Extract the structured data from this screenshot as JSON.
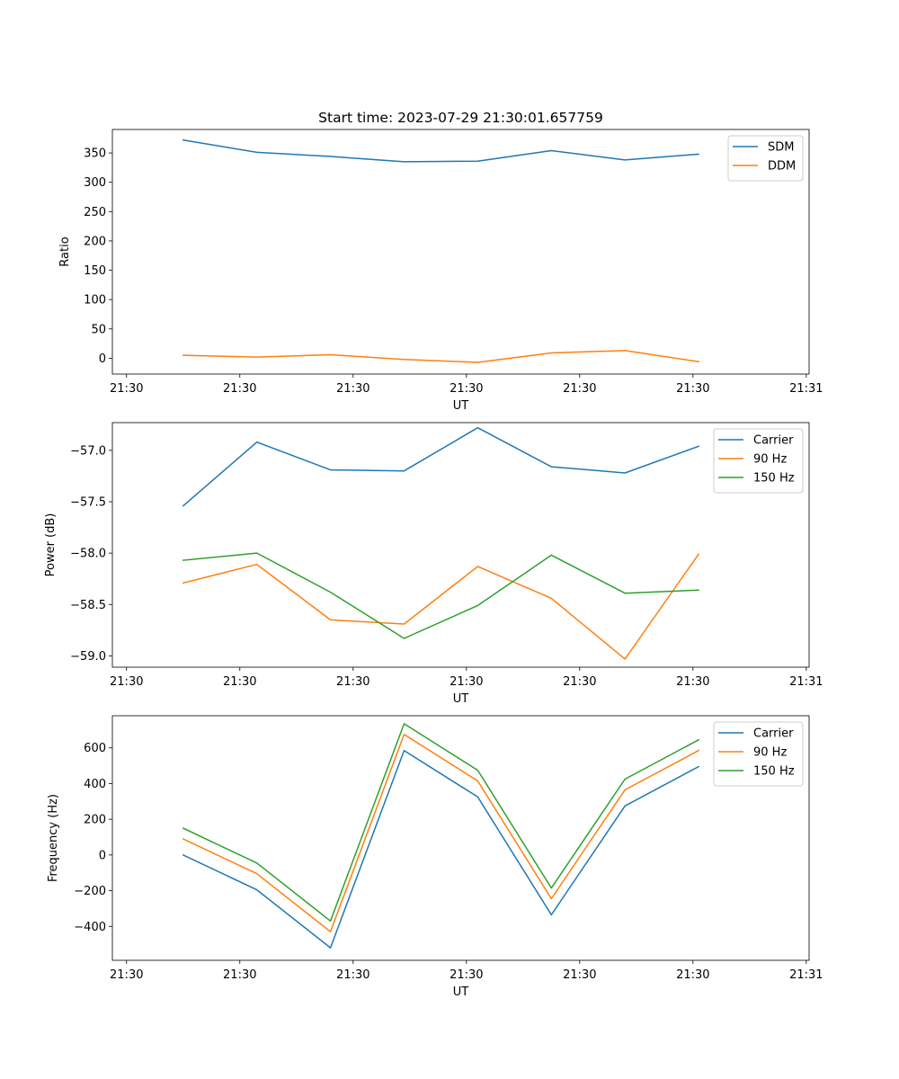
{
  "chart_data": [
    {
      "type": "line",
      "title": "Start time: 2023-07-29 21:30:01.657759",
      "xlabel": "UT",
      "ylabel": "Ratio",
      "x_ticks": [
        "21:30",
        "21:30",
        "21:30",
        "21:30",
        "21:30",
        "21:30",
        "21:31"
      ],
      "xlim": [
        -0.125,
        6.025
      ],
      "ylim": [
        -27,
        390
      ],
      "y_ticks": [
        0,
        50,
        100,
        150,
        200,
        250,
        300,
        350
      ],
      "y_tick_labels": [
        "0",
        "50",
        "100",
        "150",
        "200",
        "250",
        "300",
        "350"
      ],
      "x": [
        0.5,
        1.15,
        1.8,
        2.45,
        3.1,
        3.75,
        4.4,
        5.05
      ],
      "legend": "top-right",
      "series": [
        {
          "name": "SDM",
          "color": "#1f77b4",
          "values": [
            372,
            351,
            344,
            335,
            336,
            354,
            338,
            348
          ]
        },
        {
          "name": "DDM",
          "color": "#ff7f0e",
          "values": [
            5,
            2,
            6,
            -2,
            -7,
            9,
            13,
            -6
          ]
        }
      ]
    },
    {
      "type": "line",
      "title": "",
      "xlabel": "UT",
      "ylabel": "Power (dB)",
      "x_ticks": [
        "21:30",
        "21:30",
        "21:30",
        "21:30",
        "21:30",
        "21:30",
        "21:31"
      ],
      "xlim": [
        -0.125,
        6.025
      ],
      "ylim": [
        -59.11,
        -56.73
      ],
      "y_ticks": [
        -59.0,
        -58.5,
        -58.0,
        -57.5,
        -57.0
      ],
      "y_tick_labels": [
        "−59.0",
        "−58.5",
        "−58.0",
        "−57.5",
        "−57.0"
      ],
      "x": [
        0.5,
        1.15,
        1.8,
        2.45,
        3.1,
        3.75,
        4.4,
        5.05
      ],
      "legend": "top-right",
      "series": [
        {
          "name": "Carrier",
          "color": "#1f77b4",
          "values": [
            -57.54,
            -56.92,
            -57.19,
            -57.2,
            -56.78,
            -57.16,
            -57.22,
            -56.96
          ]
        },
        {
          "name": "90 Hz",
          "color": "#ff7f0e",
          "values": [
            -58.29,
            -58.11,
            -58.65,
            -58.69,
            -58.13,
            -58.44,
            -59.03,
            -58.01
          ]
        },
        {
          "name": "150 Hz",
          "color": "#2ca02c",
          "values": [
            -58.07,
            -58.0,
            -58.38,
            -58.83,
            -58.51,
            -58.02,
            -58.39,
            -58.36
          ]
        }
      ]
    },
    {
      "type": "line",
      "title": "",
      "xlabel": "UT",
      "ylabel": "Frequency (Hz)",
      "x_ticks": [
        "21:30",
        "21:30",
        "21:30",
        "21:30",
        "21:30",
        "21:30",
        "21:31"
      ],
      "xlim": [
        -0.125,
        6.025
      ],
      "ylim": [
        -590,
        780
      ],
      "y_ticks": [
        -400,
        -200,
        0,
        200,
        400,
        600
      ],
      "y_tick_labels": [
        "−400",
        "−200",
        "0",
        "200",
        "400",
        "600"
      ],
      "x": [
        0.5,
        1.15,
        1.8,
        2.45,
        3.1,
        3.75,
        4.4,
        5.05
      ],
      "legend": "top-right",
      "series": [
        {
          "name": "Carrier",
          "color": "#1f77b4",
          "values": [
            0,
            -195,
            -520,
            585,
            325,
            -335,
            275,
            495
          ]
        },
        {
          "name": "90 Hz",
          "color": "#ff7f0e",
          "values": [
            90,
            -105,
            -430,
            675,
            415,
            -245,
            365,
            585
          ]
        },
        {
          "name": "150 Hz",
          "color": "#2ca02c",
          "values": [
            150,
            -45,
            -370,
            735,
            475,
            -185,
            425,
            645
          ]
        }
      ]
    }
  ]
}
